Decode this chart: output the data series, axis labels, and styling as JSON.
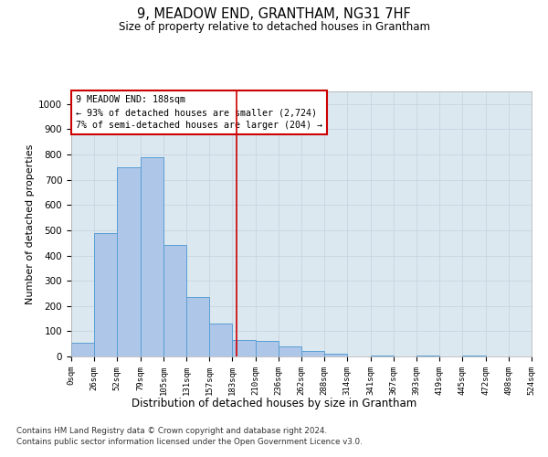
{
  "title": "9, MEADOW END, GRANTHAM, NG31 7HF",
  "subtitle": "Size of property relative to detached houses in Grantham",
  "xlabel": "Distribution of detached houses by size in Grantham",
  "ylabel": "Number of detached properties",
  "footer_line1": "Contains HM Land Registry data © Crown copyright and database right 2024.",
  "footer_line2": "Contains public sector information licensed under the Open Government Licence v3.0.",
  "annotation_title": "9 MEADOW END: 188sqm",
  "annotation_line2": "← 93% of detached houses are smaller (2,724)",
  "annotation_line3": "7% of semi-detached houses are larger (204) →",
  "property_size": 188,
  "bin_edges": [
    0,
    26,
    52,
    79,
    105,
    131,
    157,
    183,
    210,
    236,
    262,
    288,
    314,
    341,
    367,
    393,
    419,
    445,
    472,
    498,
    524
  ],
  "bar_heights": [
    55,
    490,
    750,
    790,
    440,
    235,
    130,
    65,
    60,
    40,
    20,
    10,
    0,
    5,
    0,
    5,
    0,
    5,
    0,
    0
  ],
  "bar_color": "#aec6e8",
  "bar_edge_color": "#5a9fd4",
  "vline_color": "#cc0000",
  "vline_x": 188,
  "annotation_box_color": "#cc0000",
  "grid_color": "#c8d4e0",
  "background_color": "#dce8f0",
  "ylim": [
    0,
    1050
  ],
  "yticks": [
    0,
    100,
    200,
    300,
    400,
    500,
    600,
    700,
    800,
    900,
    1000
  ]
}
